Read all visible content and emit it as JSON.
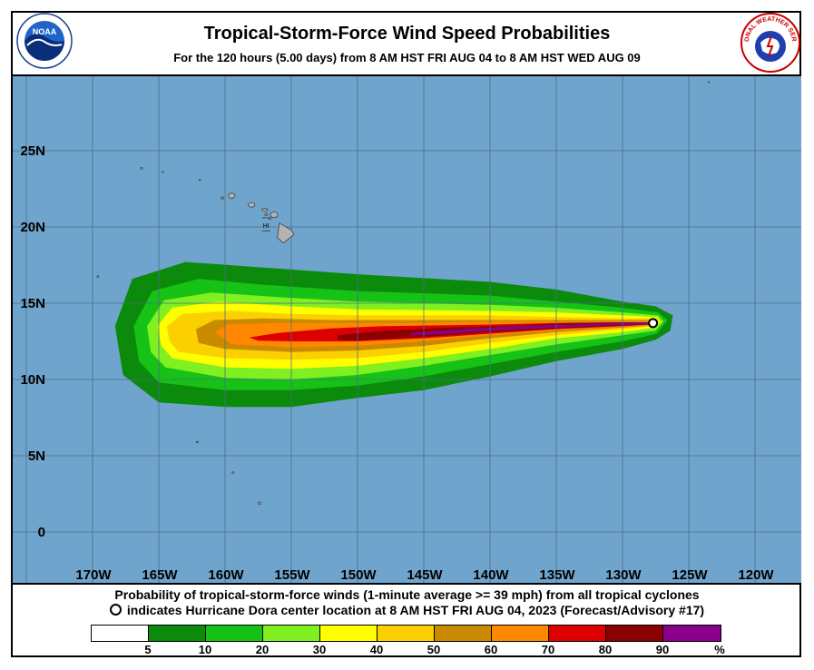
{
  "title": "Tropical-Storm-Force Wind Speed Probabilities",
  "subtitle": "For the 120 hours (5.00 days) from 8 AM HST FRI AUG 04 to 8 AM HST WED AUG 09",
  "logos": {
    "left_text": "NOAA",
    "right_text": "NATIONAL WEATHER SERVICE"
  },
  "map": {
    "lon_labels": [
      "170W",
      "165W",
      "160W",
      "155W",
      "150W",
      "145W",
      "140W",
      "135W",
      "130W",
      "125W",
      "120W"
    ],
    "lat_labels": [
      "25N",
      "20N",
      "15N",
      "10N",
      "5N",
      "0"
    ],
    "island_label": "HI",
    "colors": {
      "ocean": "#6fa4cc",
      "land": "#b3b3b3",
      "grid": "#4d6f88"
    }
  },
  "storm": {
    "name": "Hurricane Dora",
    "center_lat": 13.7,
    "center_lon": -127.7
  },
  "caption": {
    "line1": "Probability of tropical-storm-force winds (1-minute average >= 39 mph) from all tropical cyclones",
    "line2": "indicates Hurricane Dora center location at 8 AM HST FRI AUG 04, 2023 (Forecast/Advisory #17)"
  },
  "legend": {
    "labels": [
      "5",
      "10",
      "20",
      "30",
      "40",
      "50",
      "60",
      "70",
      "80",
      "90",
      "%"
    ],
    "colors": [
      "#ffffff",
      "#0b8a0b",
      "#15c215",
      "#80f020",
      "#ffff00",
      "#fcd000",
      "#c98a00",
      "#ff8800",
      "#dd0000",
      "#8b0000",
      "#8b008b"
    ]
  },
  "probability_bands": [
    {
      "color": "#0b8a0b",
      "north": [
        [
          -168.3,
          13.5
        ],
        [
          -167,
          16.6
        ],
        [
          -163,
          17.7
        ],
        [
          -158,
          17.4
        ],
        [
          -150,
          16.9
        ],
        [
          -140,
          16.4
        ],
        [
          -135,
          15.9
        ],
        [
          -130,
          15.1
        ],
        [
          -127.5,
          14.8
        ],
        [
          -126.2,
          14.2
        ],
        [
          -126.4,
          13.2
        ]
      ],
      "south": [
        [
          -127.5,
          12.6
        ],
        [
          -130,
          12.0
        ],
        [
          -135,
          11.2
        ],
        [
          -140,
          10.2
        ],
        [
          -145,
          9.3
        ],
        [
          -150,
          8.8
        ],
        [
          -155,
          8.2
        ],
        [
          -160,
          8.2
        ],
        [
          -165,
          8.5
        ],
        [
          -167.7,
          10.3
        ]
      ]
    },
    {
      "color": "#15c215",
      "north": [
        [
          -166.9,
          13.5
        ],
        [
          -165.5,
          15.8
        ],
        [
          -162,
          16.6
        ],
        [
          -157,
          16.2
        ],
        [
          -150,
          15.8
        ],
        [
          -140,
          15.5
        ],
        [
          -135,
          15.1
        ],
        [
          -130,
          14.7
        ],
        [
          -127.3,
          14.4
        ],
        [
          -126.6,
          13.9
        ]
      ],
      "south": [
        [
          -127.4,
          13.0
        ],
        [
          -130,
          12.5
        ],
        [
          -135,
          11.8
        ],
        [
          -140,
          11.0
        ],
        [
          -145,
          10.2
        ],
        [
          -150,
          9.6
        ],
        [
          -155,
          9.3
        ],
        [
          -160,
          9.3
        ],
        [
          -165,
          9.8
        ],
        [
          -166.5,
          11.2
        ]
      ]
    },
    {
      "color": "#80f020",
      "north": [
        [
          -165.9,
          13.5
        ],
        [
          -164.6,
          15.2
        ],
        [
          -161,
          15.7
        ],
        [
          -156,
          15.4
        ],
        [
          -150,
          15.1
        ],
        [
          -140,
          14.9
        ],
        [
          -135,
          14.7
        ],
        [
          -130,
          14.4
        ],
        [
          -127.3,
          14.2
        ],
        [
          -126.9,
          13.8
        ]
      ],
      "south": [
        [
          -127.5,
          13.2
        ],
        [
          -130,
          12.9
        ],
        [
          -135,
          12.3
        ],
        [
          -140,
          11.6
        ],
        [
          -145,
          10.9
        ],
        [
          -150,
          10.3
        ],
        [
          -155,
          10.0
        ],
        [
          -160,
          10.1
        ],
        [
          -164.5,
          10.8
        ],
        [
          -165.6,
          11.8
        ]
      ]
    },
    {
      "color": "#ffff00",
      "north": [
        [
          -165.1,
          13.5
        ],
        [
          -164,
          14.7
        ],
        [
          -160.5,
          15.1
        ],
        [
          -155,
          14.8
        ],
        [
          -150,
          14.6
        ],
        [
          -140,
          14.5
        ],
        [
          -135,
          14.4
        ],
        [
          -130,
          14.2
        ],
        [
          -127.4,
          14.1
        ],
        [
          -127.1,
          13.8
        ]
      ],
      "south": [
        [
          -127.6,
          13.4
        ],
        [
          -130,
          13.1
        ],
        [
          -135,
          12.7
        ],
        [
          -140,
          12.0
        ],
        [
          -145,
          11.4
        ],
        [
          -150,
          10.9
        ],
        [
          -155,
          10.7
        ],
        [
          -160,
          10.8
        ],
        [
          -164,
          11.4
        ],
        [
          -164.8,
          12.2
        ]
      ]
    },
    {
      "color": "#fcd000",
      "north": [
        [
          -164.4,
          13.5
        ],
        [
          -163.2,
          14.3
        ],
        [
          -159.5,
          14.5
        ],
        [
          -155,
          14.3
        ],
        [
          -150,
          14.2
        ],
        [
          -140,
          14.2
        ],
        [
          -135,
          14.1
        ],
        [
          -130,
          14.0
        ],
        [
          -127.4,
          14.0
        ],
        [
          -127.2,
          13.8
        ]
      ],
      "south": [
        [
          -127.7,
          13.5
        ],
        [
          -130,
          13.3
        ],
        [
          -135,
          12.9
        ],
        [
          -140,
          12.4
        ],
        [
          -145,
          11.8
        ],
        [
          -150,
          11.4
        ],
        [
          -155,
          11.3
        ],
        [
          -160,
          11.4
        ],
        [
          -163.5,
          11.8
        ],
        [
          -164.2,
          12.5
        ]
      ]
    },
    {
      "color": "#c98a00",
      "north": [
        [
          -162.2,
          13.3
        ],
        [
          -160.8,
          13.9
        ],
        [
          -157,
          14.0
        ],
        [
          -152,
          13.9
        ],
        [
          -145,
          13.9
        ],
        [
          -140,
          13.9
        ],
        [
          -135,
          13.9
        ],
        [
          -130,
          13.9
        ],
        [
          -127.6,
          13.9
        ],
        [
          -127.4,
          13.7
        ]
      ],
      "south": [
        [
          -127.8,
          13.55
        ],
        [
          -130,
          13.4
        ],
        [
          -135,
          13.1
        ],
        [
          -140,
          12.7
        ],
        [
          -145,
          12.2
        ],
        [
          -150,
          11.9
        ],
        [
          -155,
          11.8
        ],
        [
          -160,
          12.0
        ],
        [
          -162,
          12.4
        ]
      ]
    },
    {
      "color": "#ff8800",
      "north": [
        [
          -160.8,
          13.1
        ],
        [
          -159.8,
          13.6
        ],
        [
          -156,
          13.7
        ],
        [
          -150,
          13.7
        ],
        [
          -145,
          13.7
        ],
        [
          -140,
          13.8
        ],
        [
          -135,
          13.8
        ],
        [
          -130,
          13.8
        ],
        [
          -127.6,
          13.8
        ],
        [
          -127.5,
          13.7
        ]
      ],
      "south": [
        [
          -127.9,
          13.6
        ],
        [
          -130,
          13.45
        ],
        [
          -135,
          13.2
        ],
        [
          -140,
          12.9
        ],
        [
          -145,
          12.5
        ],
        [
          -150,
          12.2
        ],
        [
          -155,
          12.1
        ],
        [
          -159.5,
          12.3
        ]
      ]
    },
    {
      "color": "#dd0000",
      "north": [
        [
          -158.2,
          12.75
        ],
        [
          -156,
          13.05
        ],
        [
          -152,
          13.35
        ],
        [
          -148,
          13.5
        ],
        [
          -140,
          13.6
        ],
        [
          -135,
          13.7
        ],
        [
          -130,
          13.75
        ],
        [
          -127.6,
          13.75
        ],
        [
          -127.5,
          13.7
        ]
      ],
      "south": [
        [
          -128,
          13.6
        ],
        [
          -130,
          13.5
        ],
        [
          -135,
          13.3
        ],
        [
          -140,
          13.0
        ],
        [
          -145,
          12.7
        ],
        [
          -150,
          12.5
        ],
        [
          -155,
          12.5
        ],
        [
          -157.5,
          12.55
        ]
      ]
    },
    {
      "color": "#8b0000",
      "north": [
        [
          -151.5,
          12.9
        ],
        [
          -148,
          13.2
        ],
        [
          -143,
          13.4
        ],
        [
          -138,
          13.55
        ],
        [
          -134,
          13.7
        ],
        [
          -130,
          13.75
        ],
        [
          -127.6,
          13.75
        ],
        [
          -127.5,
          13.7
        ]
      ],
      "south": [
        [
          -128,
          13.6
        ],
        [
          -131,
          13.5
        ],
        [
          -135,
          13.35
        ],
        [
          -140,
          13.1
        ],
        [
          -145,
          12.8
        ],
        [
          -150,
          12.55
        ],
        [
          -151.5,
          12.6
        ]
      ]
    },
    {
      "color": "#8b008b",
      "north": [
        [
          -146,
          13.05
        ],
        [
          -142,
          13.3
        ],
        [
          -138,
          13.5
        ],
        [
          -134,
          13.6
        ],
        [
          -130,
          13.72
        ],
        [
          -127.6,
          13.75
        ],
        [
          -127.5,
          13.7
        ]
      ],
      "south": [
        [
          -128,
          13.62
        ],
        [
          -131,
          13.55
        ],
        [
          -135,
          13.4
        ],
        [
          -140,
          13.2
        ],
        [
          -144,
          12.95
        ],
        [
          -146,
          12.9
        ]
      ]
    }
  ]
}
